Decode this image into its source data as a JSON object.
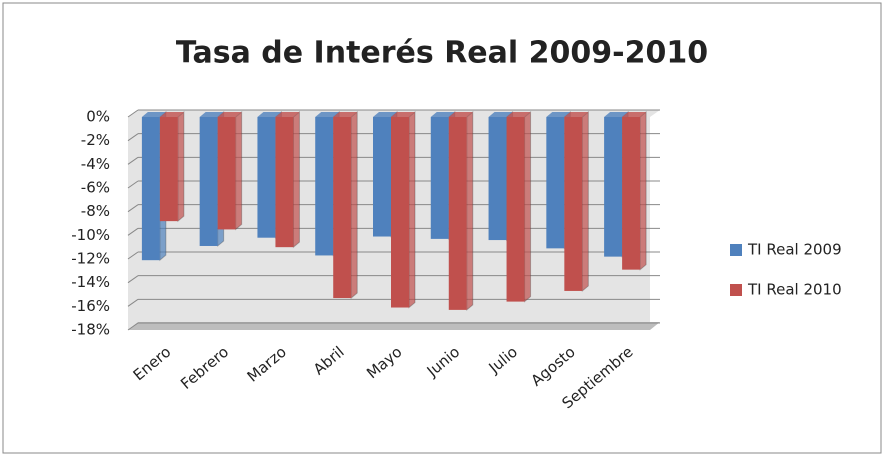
{
  "chart_data": {
    "type": "bar",
    "title": "Tasa de Interés Real 2009-2010",
    "categories": [
      "Enero",
      "Febrero",
      "Marzo",
      "Abril",
      "Mayo",
      "Junio",
      "Julio",
      "Agosto",
      "Septiembre"
    ],
    "series": [
      {
        "name": "TI Real 2009",
        "color": "#4f81bd",
        "values": [
          -12.1,
          -10.9,
          -10.2,
          -11.7,
          -10.1,
          -10.3,
          -10.4,
          -11.1,
          -11.8
        ]
      },
      {
        "name": "TI Real 2010",
        "color": "#c0504d",
        "values": [
          -8.8,
          -9.5,
          -11.0,
          -15.3,
          -16.1,
          -16.3,
          -15.6,
          -14.7,
          -12.9
        ]
      }
    ],
    "ylim": [
      -18,
      0
    ],
    "yticks": [
      {
        "value": 0,
        "label": "0%"
      },
      {
        "value": -2,
        "label": "-2%"
      },
      {
        "value": -4,
        "label": "-4%"
      },
      {
        "value": -6,
        "label": "-6%"
      },
      {
        "value": -8,
        "label": "-8%"
      },
      {
        "value": -10,
        "label": "-10%"
      },
      {
        "value": -12,
        "label": "-12%"
      },
      {
        "value": -14,
        "label": "-14%"
      },
      {
        "value": -16,
        "label": "-16%"
      },
      {
        "value": -18,
        "label": "-18%"
      }
    ],
    "grid": true,
    "legend": "right"
  }
}
